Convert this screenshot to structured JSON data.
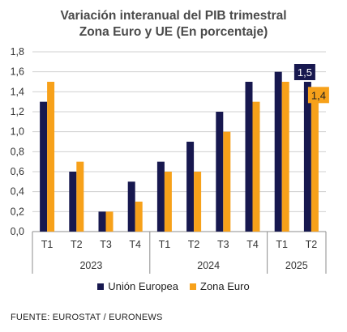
{
  "title_line1": "Variación interanual del PIB trimestral",
  "title_line2": "Zona Euro y UE (En porcentaje)",
  "source": "FUENTE: EUROSTAT / EURONEWS",
  "colors": {
    "ue": "#17184f",
    "ze": "#f7a11a",
    "grid": "#d0d0d0",
    "axis": "#8c8c8c"
  },
  "chart_data": {
    "type": "bar",
    "categories": [
      "T1",
      "T2",
      "T3",
      "T4",
      "T1",
      "T2",
      "T3",
      "T4",
      "T1",
      "T2"
    ],
    "groups": [
      {
        "label": "2023",
        "count": 4
      },
      {
        "label": "2024",
        "count": 4
      },
      {
        "label": "2025",
        "count": 2
      }
    ],
    "series": [
      {
        "name": "Unión Europea",
        "values": [
          1.3,
          0.6,
          0.2,
          0.5,
          0.7,
          0.9,
          1.2,
          1.5,
          1.6,
          1.5
        ]
      },
      {
        "name": "Zona Euro",
        "values": [
          1.5,
          0.7,
          0.2,
          0.3,
          0.6,
          0.6,
          1.0,
          1.3,
          1.5,
          1.4
        ]
      }
    ],
    "ylim": [
      0,
      1.8
    ],
    "yticks": [
      "0,0",
      "0,2",
      "0,4",
      "0,6",
      "0,8",
      "1,0",
      "1,2",
      "1,4",
      "1,6",
      "1,8"
    ],
    "annotations": [
      {
        "series": 0,
        "index": 9,
        "text": "1,5"
      },
      {
        "series": 1,
        "index": 9,
        "text": "1,4"
      }
    ],
    "grid": true,
    "legend": "bottom"
  }
}
